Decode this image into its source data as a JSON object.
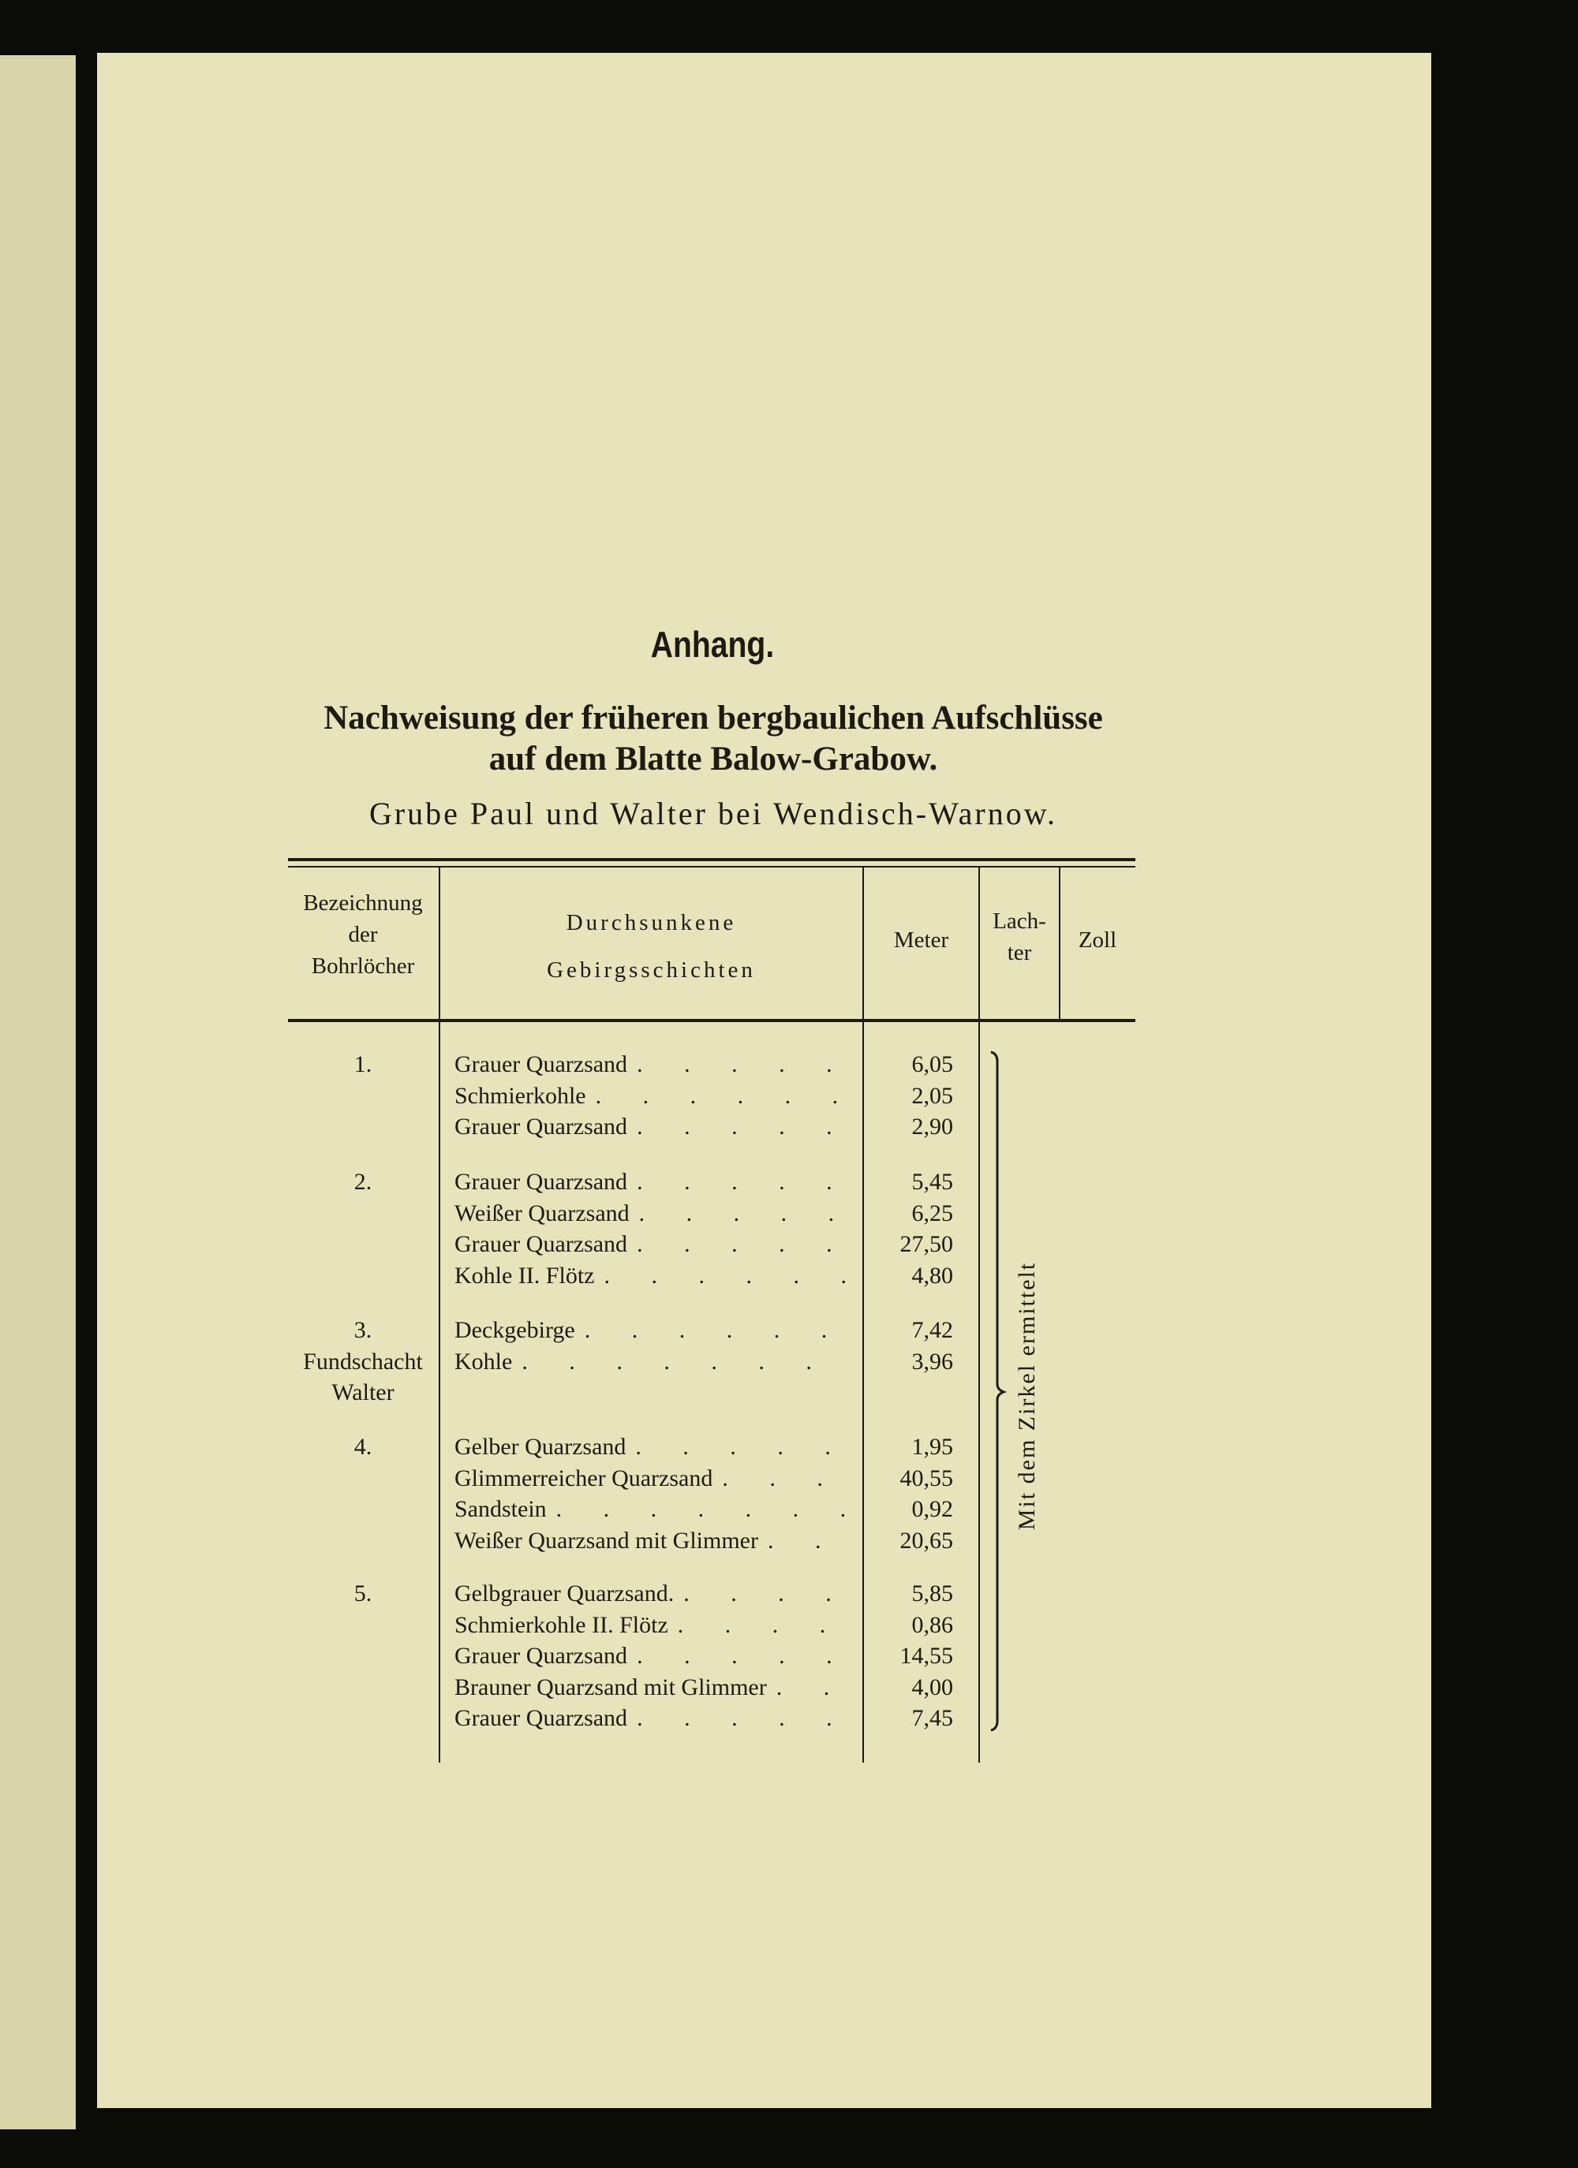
{
  "heading": "Anhang.",
  "subtitle_line1": "Nachweisung der früheren bergbaulichen Aufschlüsse",
  "subtitle_line2": "auf dem Blatte Balow-Grabow.",
  "subtitle_line3": "Grube Paul und Walter bei Wendisch-Warnow.",
  "table": {
    "headers": {
      "bohrloch": [
        "Bezeichnung",
        "der",
        "Bohrlöcher"
      ],
      "schichten": [
        "Durchsunkene",
        "Gebirgsschichten"
      ],
      "meter": "Meter",
      "lachter": [
        "Lach-",
        "ter"
      ],
      "zoll": "Zoll"
    },
    "bracket_note": "Mit dem Zirkel ermittelt",
    "groups": [
      {
        "label": [
          "1."
        ],
        "rows": [
          [
            "Grauer Quarzsand",
            "6,05"
          ],
          [
            "Schmierkohle",
            "2,05"
          ],
          [
            "Grauer Quarzsand",
            "2,90"
          ]
        ]
      },
      {
        "label": [
          "2."
        ],
        "rows": [
          [
            "Grauer Quarzsand",
            "5,45"
          ],
          [
            "Weißer Quarzsand",
            "6,25"
          ],
          [
            "Grauer Quarzsand",
            "27,50"
          ],
          [
            "Kohle II. Flötz",
            "4,80"
          ]
        ]
      },
      {
        "label": [
          "3.",
          "Fundschacht",
          "Walter"
        ],
        "rows": [
          [
            "Deckgebirge",
            "7,42"
          ],
          [
            "Kohle",
            "3,96"
          ]
        ]
      },
      {
        "label": [
          "4."
        ],
        "rows": [
          [
            "Gelber Quarzsand",
            "1,95"
          ],
          [
            "Glimmerreicher Quarzsand",
            "40,55"
          ],
          [
            "Sandstein",
            "0,92"
          ],
          [
            "Weißer Quarzsand mit Glimmer",
            "20,65"
          ]
        ]
      },
      {
        "label": [
          "5."
        ],
        "rows": [
          [
            "Gelbgrauer Quarzsand.",
            "5,85"
          ],
          [
            "Schmierkohle II. Flötz",
            "0,86"
          ],
          [
            "Grauer Quarzsand",
            "14,55"
          ],
          [
            "Brauner Quarzsand mit Glimmer",
            "4,00"
          ],
          [
            "Grauer Quarzsand",
            "7,45"
          ]
        ]
      }
    ]
  }
}
